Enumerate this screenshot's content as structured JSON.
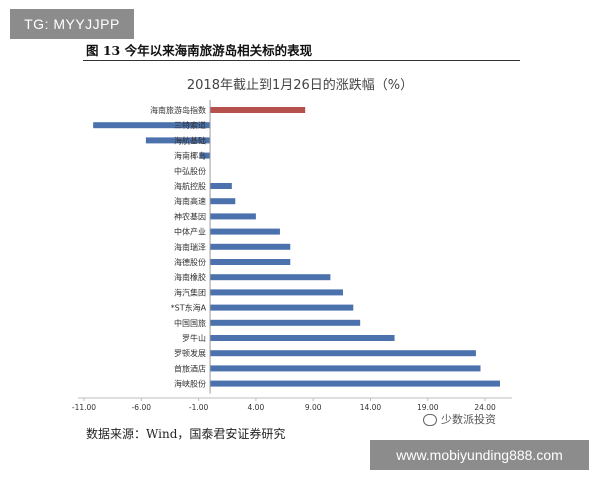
{
  "watermark_top_left": "TG: MYYJJPP",
  "figure_title": "图 13 今年以来海南旅游岛相关标的表现",
  "source_text": "数据来源：Wind，国泰君安证券研究",
  "watermark_wechat": "少数派投资",
  "watermark_bottom_right": "www.mobiyunding888.com",
  "chart_data": {
    "type": "bar",
    "orientation": "horizontal",
    "title": "2018年截止到1月26日的涨跌幅（%）",
    "xlim": [
      -11,
      26
    ],
    "x_ticks": [
      -11.0,
      -6.0,
      -1.0,
      4.0,
      9.0,
      14.0,
      19.0,
      24.0
    ],
    "x_tick_labels": [
      "-11.00",
      "-6.00",
      "-1.00",
      "4.00",
      "9.00",
      "14.00",
      "19.00",
      "24.00"
    ],
    "categories": [
      "海南旅游岛指数",
      "三特索道",
      "海航基础",
      "海南椰岛",
      "中弘股份",
      "海航控股",
      "海南高速",
      "神农基因",
      "中体产业",
      "海南瑞泽",
      "海德股份",
      "海南橡胶",
      "海汽集团",
      "*ST东海A",
      "中国国旅",
      "罗牛山",
      "罗顿发展",
      "首旅酒店",
      "海峡股份"
    ],
    "values": [
      8.3,
      -10.2,
      -5.6,
      -0.9,
      0.0,
      1.9,
      2.2,
      4.0,
      6.1,
      7.0,
      7.0,
      10.5,
      11.6,
      12.5,
      13.1,
      16.1,
      23.2,
      23.6,
      25.3
    ],
    "highlight_color": "#b5504d",
    "bar_color": "#4b72ad",
    "grid": false
  }
}
